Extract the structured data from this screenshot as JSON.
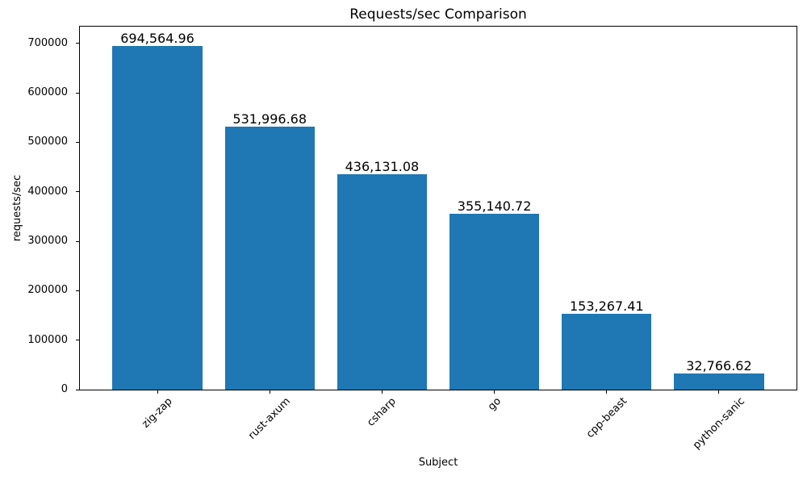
{
  "chart_data": {
    "type": "bar",
    "title": "Requests/sec Comparison",
    "xlabel": "Subject",
    "ylabel": "requests/sec",
    "categories": [
      "zig-zap",
      "rust-axum",
      "csharp",
      "go",
      "cpp-beast",
      "python-sanic"
    ],
    "values": [
      694564.96,
      531996.68,
      436131.08,
      355140.72,
      153267.41,
      32766.62
    ],
    "value_labels": [
      "694,564.96",
      "531,996.68",
      "436,131.08",
      "355,140.72",
      "153,267.41",
      "32,766.62"
    ],
    "yticks": [
      0,
      100000,
      200000,
      300000,
      400000,
      500000,
      600000,
      700000
    ],
    "ylim": [
      0,
      734000
    ],
    "bar_color": "#1f77b4",
    "axis_color": "#000000",
    "grid": false
  }
}
